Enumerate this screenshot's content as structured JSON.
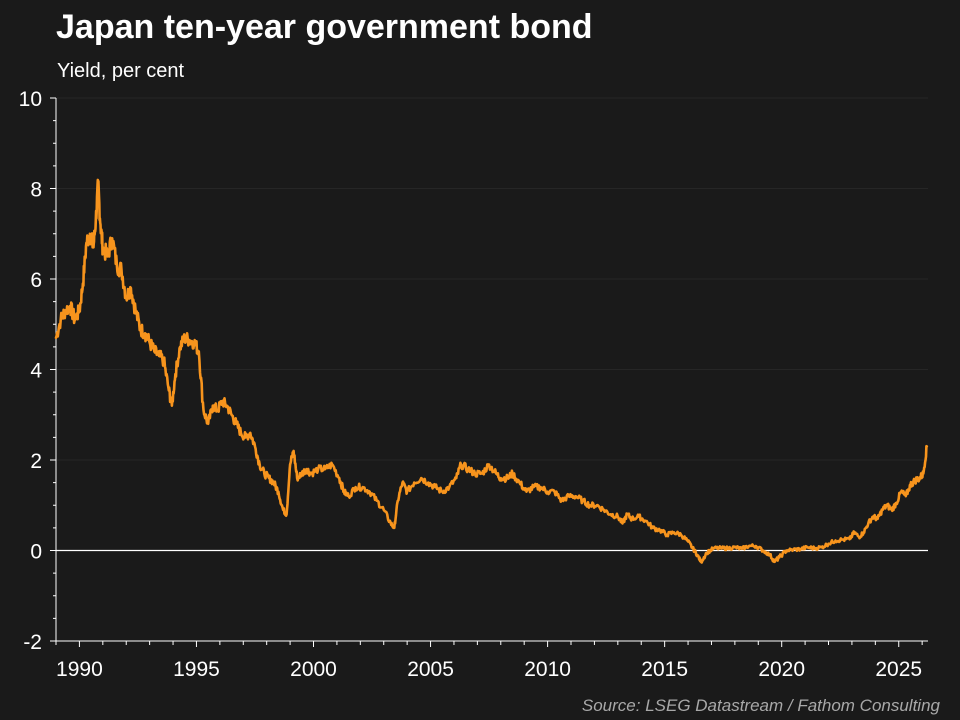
{
  "chart_data": {
    "type": "line",
    "title": "Japan ten-year government bond",
    "subtitle": "Yield, per cent",
    "source": "Source: LSEG Datastream / Fathom Consulting",
    "xlim": [
      1989.0,
      2026.25
    ],
    "ylim": [
      -2,
      10
    ],
    "x_ticks": [
      1990,
      1995,
      2000,
      2005,
      2010,
      2015,
      2020,
      2025
    ],
    "x_tick_labels": [
      "1990",
      "1995",
      "2000",
      "2005",
      "2010",
      "2015",
      "2020",
      "2025"
    ],
    "y_ticks": [
      -2,
      0,
      2,
      4,
      6,
      8,
      10
    ],
    "y_tick_labels": [
      "-2",
      "0",
      "2",
      "4",
      "6",
      "8",
      "10"
    ],
    "grid": true,
    "zero_line": true,
    "series": [
      {
        "color": "#f7941d",
        "x": [
          1989.0,
          1989.2,
          1989.4,
          1989.6,
          1989.8,
          1990.0,
          1990.15,
          1990.3,
          1990.45,
          1990.6,
          1990.7,
          1990.8,
          1990.9,
          1991.0,
          1991.2,
          1991.4,
          1991.6,
          1991.8,
          1992.0,
          1992.2,
          1992.4,
          1992.6,
          1992.8,
          1993.0,
          1993.2,
          1993.4,
          1993.6,
          1993.8,
          1993.95,
          1994.1,
          1994.3,
          1994.5,
          1994.7,
          1994.9,
          1995.1,
          1995.3,
          1995.5,
          1995.7,
          1995.9,
          1996.1,
          1996.3,
          1996.5,
          1996.7,
          1996.9,
          1997.1,
          1997.3,
          1997.5,
          1997.7,
          1997.9,
          1998.1,
          1998.3,
          1998.5,
          1998.7,
          1998.85,
          1999.0,
          1999.15,
          1999.3,
          1999.5,
          1999.7,
          1999.9,
          2000.2,
          2000.5,
          2000.8,
          2001.1,
          2001.3,
          2001.5,
          2001.8,
          2002.1,
          2002.4,
          2002.7,
          2003.0,
          2003.3,
          2003.45,
          2003.6,
          2003.8,
          2004.0,
          2004.3,
          2004.6,
          2004.9,
          2005.2,
          2005.5,
          2005.8,
          2006.1,
          2006.3,
          2006.6,
          2006.9,
          2007.2,
          2007.5,
          2007.8,
          2008.0,
          2008.3,
          2008.5,
          2008.8,
          2009.1,
          2009.4,
          2009.7,
          2010.0,
          2010.3,
          2010.6,
          2010.9,
          2011.2,
          2011.5,
          2011.8,
          2012.1,
          2012.4,
          2012.7,
          2013.0,
          2013.2,
          2013.4,
          2013.6,
          2013.9,
          2014.2,
          2014.5,
          2014.8,
          2015.1,
          2015.4,
          2015.7,
          2016.0,
          2016.2,
          2016.4,
          2016.55,
          2016.8,
          2017.1,
          2017.4,
          2017.7,
          2018.0,
          2018.3,
          2018.6,
          2018.9,
          2019.2,
          2019.5,
          2019.7,
          2019.9,
          2020.2,
          2020.5,
          2020.8,
          2021.1,
          2021.4,
          2021.7,
          2022.0,
          2022.3,
          2022.6,
          2022.9,
          2023.1,
          2023.3,
          2023.5,
          2023.7,
          2023.9,
          2024.1,
          2024.3,
          2024.5,
          2024.7,
          2024.9,
          2025.1,
          2025.3,
          2025.5,
          2025.7,
          2025.9,
          2026.05,
          2026.2
        ],
        "y": [
          4.7,
          5.1,
          5.3,
          5.4,
          5.1,
          5.3,
          5.9,
          6.8,
          7.0,
          6.7,
          7.3,
          8.1,
          7.2,
          6.7,
          6.5,
          6.9,
          6.3,
          6.2,
          5.6,
          5.8,
          5.3,
          4.9,
          4.8,
          4.6,
          4.4,
          4.3,
          4.2,
          3.6,
          3.2,
          3.9,
          4.5,
          4.7,
          4.65,
          4.6,
          4.4,
          3.1,
          2.8,
          3.2,
          3.1,
          3.3,
          3.2,
          3.0,
          2.8,
          2.6,
          2.5,
          2.6,
          2.3,
          1.9,
          1.7,
          1.6,
          1.5,
          1.3,
          0.9,
          0.8,
          1.9,
          2.2,
          1.6,
          1.7,
          1.8,
          1.7,
          1.8,
          1.8,
          1.9,
          1.6,
          1.3,
          1.2,
          1.4,
          1.4,
          1.3,
          1.1,
          0.9,
          0.6,
          0.5,
          1.1,
          1.5,
          1.3,
          1.5,
          1.6,
          1.5,
          1.4,
          1.3,
          1.4,
          1.6,
          1.9,
          1.8,
          1.7,
          1.7,
          1.9,
          1.7,
          1.6,
          1.6,
          1.7,
          1.5,
          1.3,
          1.4,
          1.4,
          1.3,
          1.3,
          1.1,
          1.2,
          1.2,
          1.1,
          1.0,
          1.0,
          0.9,
          0.8,
          0.75,
          0.6,
          0.8,
          0.7,
          0.75,
          0.65,
          0.5,
          0.45,
          0.35,
          0.4,
          0.35,
          0.2,
          0.05,
          -0.1,
          -0.25,
          -0.05,
          0.05,
          0.05,
          0.05,
          0.07,
          0.04,
          0.1,
          0.1,
          0.0,
          -0.1,
          -0.25,
          -0.15,
          0.0,
          0.02,
          0.03,
          0.07,
          0.05,
          0.07,
          0.15,
          0.22,
          0.24,
          0.25,
          0.4,
          0.3,
          0.4,
          0.6,
          0.75,
          0.7,
          0.9,
          1.0,
          0.9,
          1.05,
          1.3,
          1.2,
          1.45,
          1.55,
          1.6,
          1.7,
          2.3
        ]
      }
    ]
  }
}
